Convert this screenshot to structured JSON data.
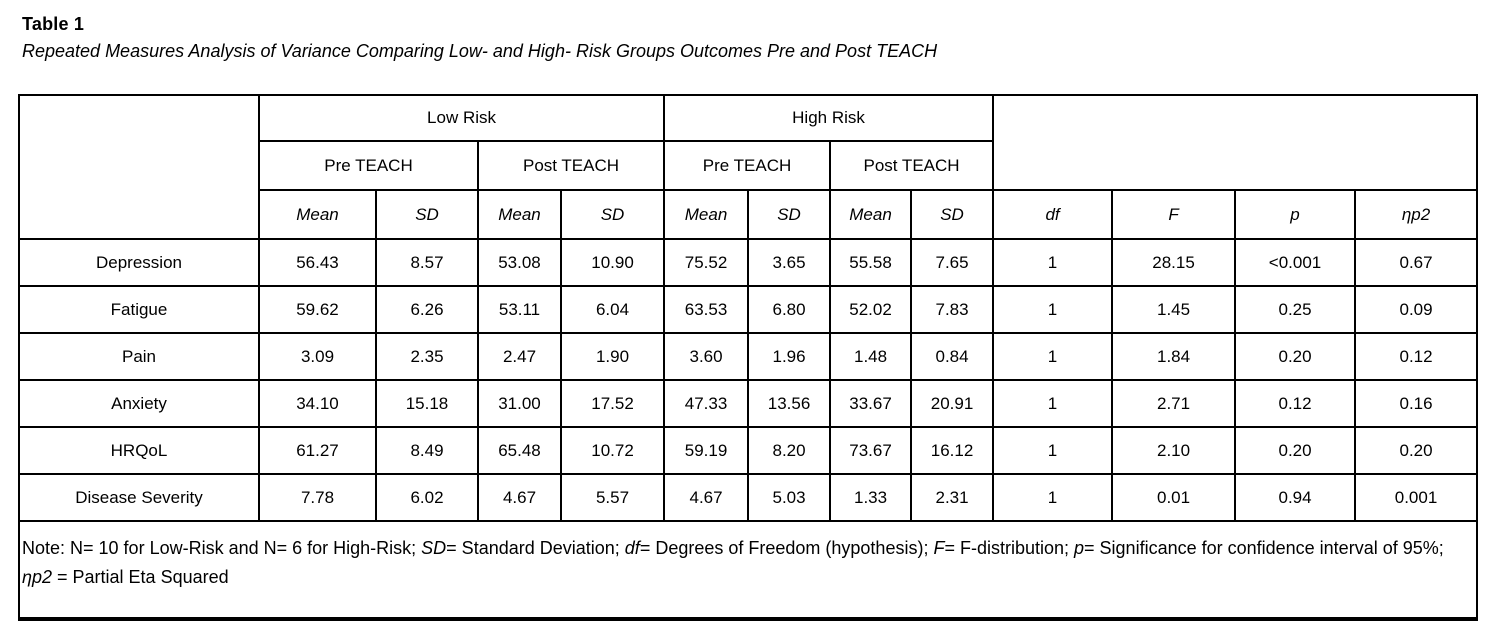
{
  "title": "Table 1",
  "subtitle": "Repeated Measures Analysis of Variance Comparing Low- and High- Risk Groups Outcomes Pre and Post TEACH",
  "table": {
    "groups": [
      "Low Risk",
      "High Risk"
    ],
    "time_headers": [
      "Pre TEACH",
      "Post TEACH",
      "Pre TEACH",
      "Post TEACH"
    ],
    "sub_headers": [
      "Mean",
      "SD",
      "Mean",
      "SD",
      "Mean",
      "SD",
      "Mean",
      "SD",
      "df",
      "F",
      "p",
      "ηp2"
    ],
    "rows": [
      {
        "label": "Depression",
        "values": [
          "56.43",
          "8.57",
          "53.08",
          "10.90",
          "75.52",
          "3.65",
          "55.58",
          "7.65",
          "1",
          "28.15",
          "<0.001",
          "0.67"
        ]
      },
      {
        "label": "Fatigue",
        "values": [
          "59.62",
          "6.26",
          "53.11",
          "6.04",
          "63.53",
          "6.80",
          "52.02",
          "7.83",
          "1",
          "1.45",
          "0.25",
          "0.09"
        ]
      },
      {
        "label": "Pain",
        "values": [
          "3.09",
          "2.35",
          "2.47",
          "1.90",
          "3.60",
          "1.96",
          "1.48",
          "0.84",
          "1",
          "1.84",
          "0.20",
          "0.12"
        ]
      },
      {
        "label": "Anxiety",
        "values": [
          "34.10",
          "15.18",
          "31.00",
          "17.52",
          "47.33",
          "13.56",
          "33.67",
          "20.91",
          "1",
          "2.71",
          "0.12",
          "0.16"
        ]
      },
      {
        "label": "HRQoL",
        "values": [
          "61.27",
          "8.49",
          "65.48",
          "10.72",
          "59.19",
          "8.20",
          "73.67",
          "16.12",
          "1",
          "2.10",
          "0.20",
          "0.20"
        ]
      },
      {
        "label": "Disease Severity",
        "values": [
          "7.78",
          "6.02",
          "4.67",
          "5.57",
          "4.67",
          "5.03",
          "1.33",
          "2.31",
          "1",
          "0.01",
          "0.94",
          "0.001"
        ]
      }
    ]
  },
  "note": {
    "segments": [
      {
        "t": "Note: N= 10 for Low-Risk and N= 6 for High-Risk; ",
        "i": false
      },
      {
        "t": "SD",
        "i": true
      },
      {
        "t": "= Standard Deviation; ",
        "i": false
      },
      {
        "t": "df",
        "i": true
      },
      {
        "t": "= Degrees of Freedom (hypothesis); ",
        "i": false
      },
      {
        "t": "F",
        "i": true
      },
      {
        "t": "= F-distribution; ",
        "i": false
      },
      {
        "t": "p",
        "i": true
      },
      {
        "t": "= Significance for confidence interval of 95%; ",
        "i": false
      },
      {
        "t": "ηp2",
        "i": true
      },
      {
        "t": " = Partial Eta Squared",
        "i": false
      }
    ]
  }
}
